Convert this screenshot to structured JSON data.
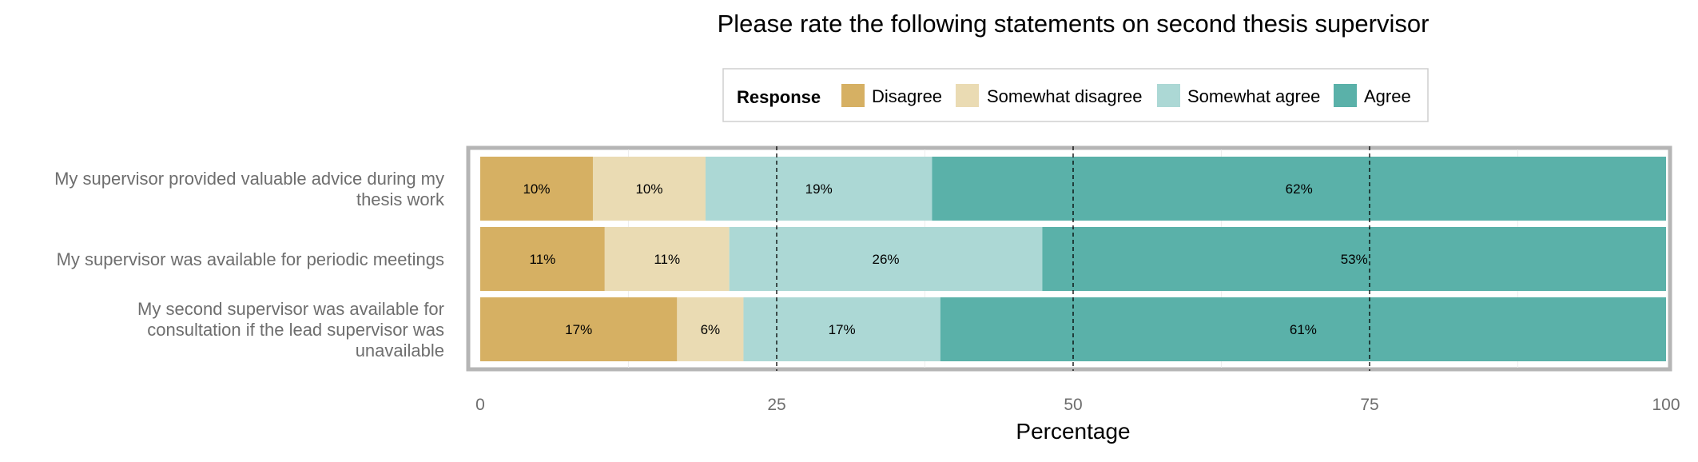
{
  "chart_data": {
    "type": "bar",
    "orientation": "horizontal",
    "stacked": true,
    "title": "Please rate the following statements on second thesis supervisor",
    "xlabel": "Percentage",
    "ylabel": "",
    "xlim": [
      0,
      100
    ],
    "x_ticks": [
      "0",
      "25",
      "50",
      "75",
      "100"
    ],
    "reference_lines": [
      25,
      50,
      75
    ],
    "legend": {
      "title": "Response",
      "placement": "top",
      "entries": [
        "Disagree",
        "Somewhat disagree",
        "Somewhat agree",
        "Agree"
      ]
    },
    "categories": [
      [
        "My supervisor provided valuable advice during my",
        "thesis work"
      ],
      [
        "My supervisor was available for periodic meetings"
      ],
      [
        "My second supervisor was available for",
        "consultation if the lead supervisor was",
        "unavailable"
      ]
    ],
    "series": [
      {
        "name": "Disagree",
        "color": "#d6b063",
        "values": [
          9.5,
          10.5,
          16.6
        ],
        "labels": [
          "10%",
          "11%",
          "17%"
        ]
      },
      {
        "name": "Somewhat disagree",
        "color": "#eadbb3",
        "values": [
          9.5,
          10.5,
          5.6
        ],
        "labels": [
          "10%",
          "11%",
          "6%"
        ]
      },
      {
        "name": "Somewhat agree",
        "color": "#acd8d5",
        "values": [
          19.1,
          26.4,
          16.6
        ],
        "labels": [
          "19%",
          "26%",
          "17%"
        ]
      },
      {
        "name": "Agree",
        "color": "#5ab1a9",
        "values": [
          61.9,
          52.6,
          61.2
        ],
        "labels": [
          "62%",
          "53%",
          "61%"
        ]
      }
    ],
    "grid": true
  }
}
